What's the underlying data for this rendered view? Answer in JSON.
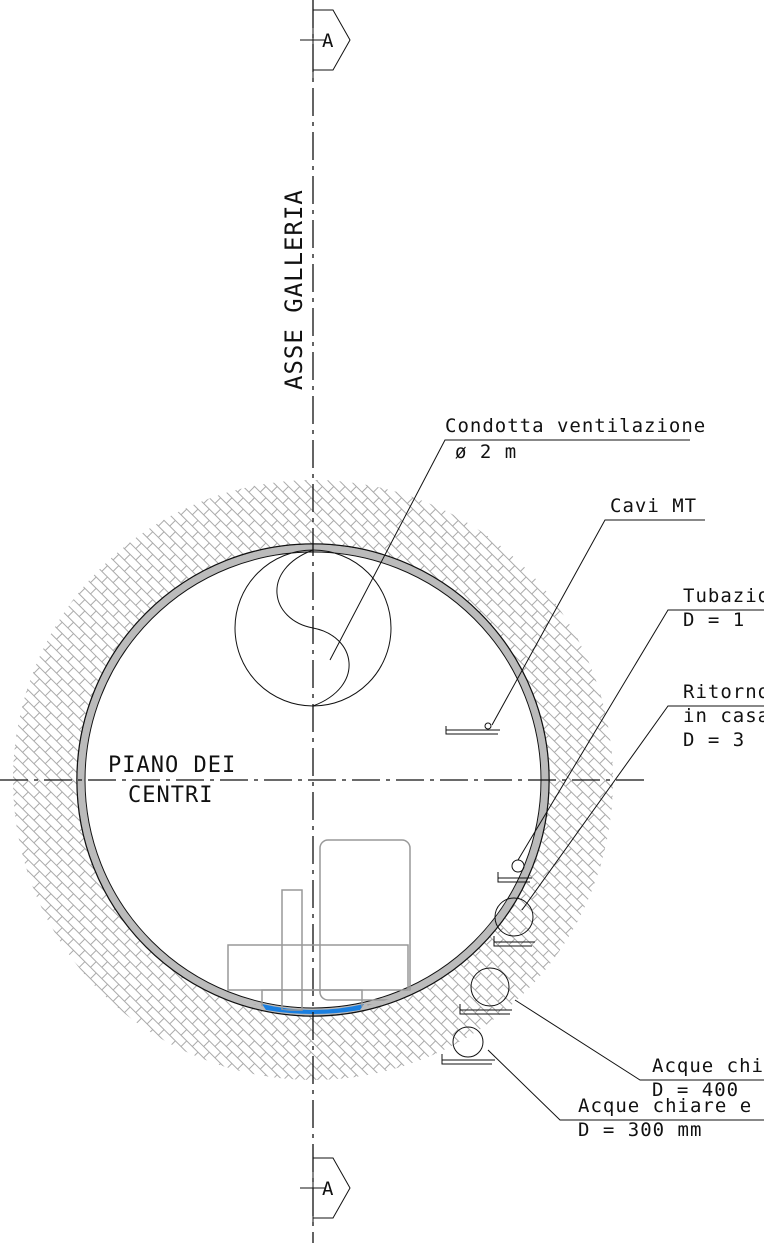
{
  "section_marks": {
    "top": "A",
    "bottom": "A"
  },
  "axis_label": "ASSE GALLERIA",
  "plane_label": [
    "PIANO DEI",
    "CENTRI"
  ],
  "labels": [
    {
      "lines": [
        "Condotta ventilazione",
        "ø 2 m"
      ]
    },
    {
      "lines": [
        "Cavi MT"
      ]
    },
    {
      "lines": [
        "Tubazio",
        "D = 1"
      ]
    },
    {
      "lines": [
        "Ritorno",
        "in casa",
        "D = 3"
      ]
    },
    {
      "lines": [
        "Acque chi",
        "D = 400"
      ]
    },
    {
      "lines": [
        "Acque chiare e",
        "D = 300 mm"
      ]
    }
  ]
}
